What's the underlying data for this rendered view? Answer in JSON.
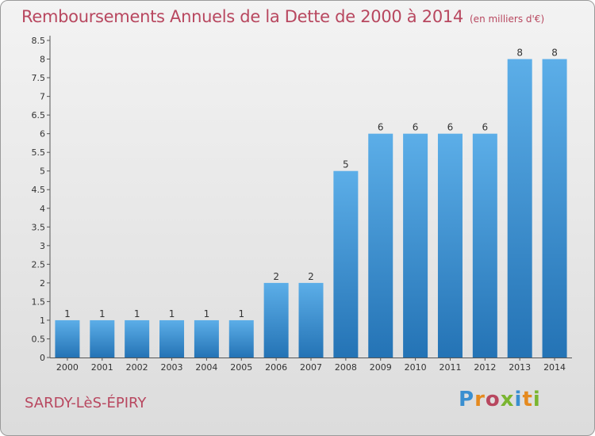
{
  "header": {
    "title": "Remboursements Annuels de la Dette de 2000 à 2014",
    "unit": "(en milliers d'€)"
  },
  "footer": {
    "town": "SARDY-LèS-ÉPIRY",
    "brand": "Proxiti",
    "brand_colors": [
      "#3a8fd0",
      "#e58a1f",
      "#b8475f",
      "#7ab530",
      "#3a8fd0",
      "#e58a1f",
      "#7ab530"
    ]
  },
  "colors": {
    "bar_top": "#5caee8",
    "bar_bottom": "#2473b5",
    "text_accent": "#b8475f",
    "axis_text": "#333333"
  },
  "chart_data": {
    "type": "bar",
    "categories": [
      "2000",
      "2001",
      "2002",
      "2003",
      "2004",
      "2005",
      "2006",
      "2007",
      "2008",
      "2009",
      "2010",
      "2011",
      "2012",
      "2013",
      "2014"
    ],
    "values": [
      1,
      1,
      1,
      1,
      1,
      1,
      2,
      2,
      5,
      6,
      6,
      6,
      6,
      8,
      8
    ],
    "data_labels": [
      "1",
      "1",
      "1",
      "1",
      "1",
      "1",
      "2",
      "2",
      "5",
      "6",
      "6",
      "6",
      "6",
      "8",
      "8"
    ],
    "title": "Remboursements Annuels de la Dette de 2000 à 2014",
    "xlabel": "",
    "ylabel": "",
    "ylim": [
      0,
      8.5
    ],
    "yticks": [
      "0",
      "0.5",
      "1",
      "1.5",
      "2",
      "2.5",
      "3",
      "3.5",
      "4",
      "4.5",
      "5",
      "5.5",
      "6",
      "6.5",
      "7",
      "7.5",
      "8",
      "8.5"
    ],
    "grid": false,
    "legend": "none"
  }
}
